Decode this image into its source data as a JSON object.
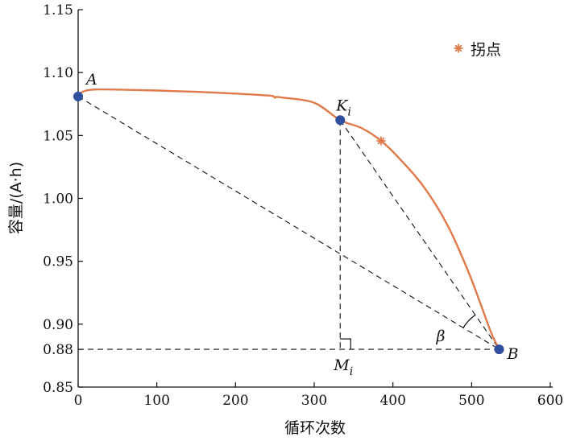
{
  "chart_data": {
    "type": "line",
    "xlabel": "循环次数",
    "ylabel": "容量/(A·h)",
    "xlim": [
      0,
      600
    ],
    "ylim": [
      0.85,
      1.15
    ],
    "x_ticks": [
      "0",
      "100",
      "200",
      "300",
      "400",
      "500",
      "600"
    ],
    "y_ticks": [
      "0.85",
      "0.88",
      "0.90",
      "0.95",
      "1.00",
      "1.05",
      "1.10",
      "1.15"
    ],
    "grid": false,
    "legend": {
      "label": "拐点",
      "position": "top-right",
      "marker": "*"
    },
    "colors": {
      "curve": "#e07a4a",
      "points": "#2f4f9f",
      "inflection": "#e07a4a",
      "guides": "#111111"
    },
    "series": [
      {
        "x": [
          0,
          5,
          15,
          30,
          60,
          100,
          150,
          200,
          240,
          248,
          250,
          252,
          260,
          300,
          333,
          360,
          385,
          410,
          440,
          470,
          495,
          512,
          525,
          535
        ],
        "y": [
          1.081,
          1.0845,
          1.0862,
          1.0866,
          1.0863,
          1.0857,
          1.0847,
          1.0833,
          1.0818,
          1.0812,
          1.08,
          1.0806,
          1.0801,
          1.076,
          1.0622,
          1.0559,
          1.0457,
          1.0305,
          1.0085,
          0.978,
          0.943,
          0.915,
          0.893,
          0.88
        ]
      }
    ],
    "points": [
      {
        "label": "A",
        "x": 0,
        "y": 1.081
      },
      {
        "label": "K",
        "subscript": "i",
        "x": 333,
        "y": 1.0622
      },
      {
        "label": "B",
        "x": 535,
        "y": 0.88
      },
      {
        "label": "M",
        "subscript": "i",
        "x": 333,
        "y": 0.88
      }
    ],
    "inflection_point": {
      "x": 385,
      "y": 1.0457
    },
    "angle_label": "β"
  }
}
